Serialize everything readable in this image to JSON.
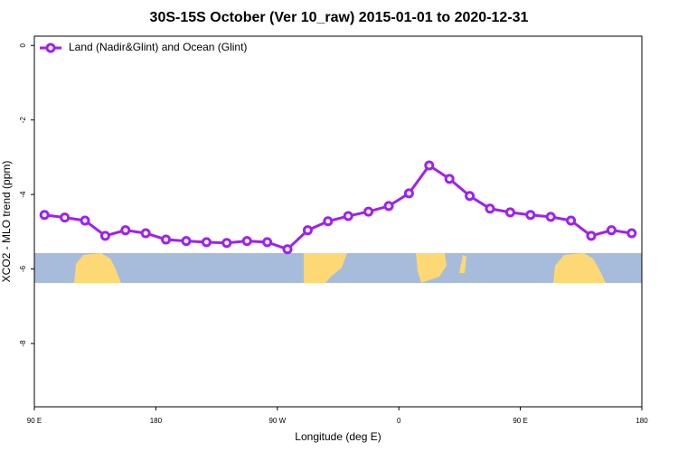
{
  "chart_data": {
    "type": "line",
    "title": "30S-15S October (Ver 10_raw)   2015-01-01 to 2020-12-31",
    "xlabel": "Longitude (deg E)",
    "ylabel": "XCO2 - MLO trend (ppm)",
    "x": [
      97.5,
      112.5,
      127.5,
      142.5,
      157.5,
      172.5,
      187.5,
      202.5,
      217.5,
      232.5,
      247.5,
      262.5,
      277.5,
      292.5,
      307.5,
      322.5,
      337.5,
      352.5,
      367.5,
      382.5,
      397.5,
      412.5,
      427.5,
      442.5,
      457.5,
      472.5,
      487.5,
      502.5,
      517.5,
      532.5
    ],
    "series": [
      {
        "name": "Land (Nadir&Glint) and Ocean (Glint)",
        "color": "#a020f0",
        "values": [
          -4.55,
          -4.62,
          -4.7,
          -5.11,
          -4.96,
          -5.04,
          -5.21,
          -5.25,
          -5.28,
          -5.3,
          -5.25,
          -5.28,
          -5.47,
          -4.96,
          -4.72,
          -4.58,
          -4.46,
          -4.31,
          -3.97,
          -3.22,
          -3.58,
          -4.04,
          -4.38,
          -4.48,
          -4.55,
          -4.6,
          -4.7,
          -5.11,
          -4.96,
          -5.04
        ]
      }
    ],
    "xlim": [
      90,
      540
    ],
    "xticks": [
      {
        "value": 90,
        "label": "90 E"
      },
      {
        "value": 180,
        "label": "180"
      },
      {
        "value": 270,
        "label": "90 W"
      },
      {
        "value": 360,
        "label": "0"
      },
      {
        "value": 450,
        "label": "90 E"
      },
      {
        "value": 540,
        "label": "180"
      }
    ],
    "ylim": [
      -9.7,
      0.25
    ],
    "yticks": [
      0,
      -2,
      -4,
      -6,
      -8
    ],
    "legend": "upper left"
  }
}
